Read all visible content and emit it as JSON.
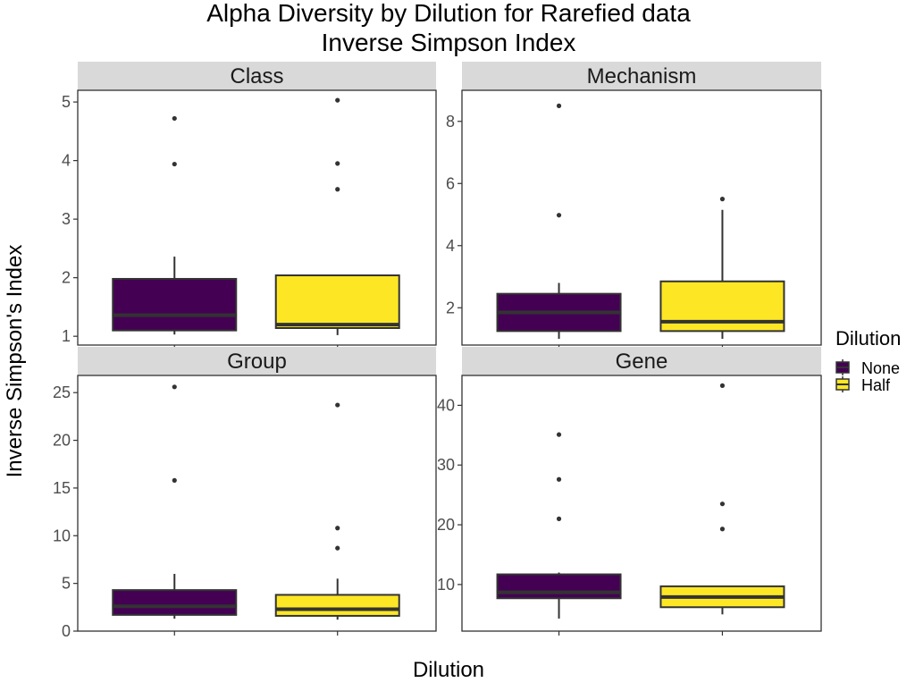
{
  "chart_data": {
    "type": "boxplot",
    "title": "Alpha Diversity by Dilution for Rarefied data",
    "subtitle": "Inverse Simpson Index",
    "xlabel": "Dilution",
    "ylabel": "Inverse Simpson's Index",
    "legend": {
      "title": "Dilution",
      "placement": "right",
      "entries": [
        {
          "label": "None",
          "color": "#440154"
        },
        {
          "label": "Half",
          "color": "#FDE725"
        }
      ]
    },
    "categories": [
      "None",
      "Half"
    ],
    "colors": {
      "None": "#440154",
      "Half": "#FDE725",
      "strip": "#D9D9D9",
      "outline": "#333333"
    },
    "facets": [
      {
        "name": "Class",
        "ylim": [
          0.85,
          5.2
        ],
        "yticks": [
          1,
          2,
          3,
          4,
          5
        ],
        "boxes": [
          {
            "group": "None",
            "min": 1.03,
            "q1": 1.1,
            "median": 1.36,
            "q3": 1.98,
            "max": 2.36,
            "outliers": [
              3.94,
              4.72
            ]
          },
          {
            "group": "Half",
            "min": 1.02,
            "q1": 1.14,
            "median": 1.2,
            "q3": 2.04,
            "max": 2.04,
            "outliers": [
              3.51,
              3.95,
              5.03
            ]
          }
        ]
      },
      {
        "name": "Mechanism",
        "ylim": [
          0.8,
          9.0
        ],
        "yticks": [
          2,
          4,
          6,
          8
        ],
        "boxes": [
          {
            "group": "None",
            "min": 1.0,
            "q1": 1.25,
            "median": 1.85,
            "q3": 2.45,
            "max": 2.8,
            "outliers": [
              4.98,
              8.5
            ]
          },
          {
            "group": "Half",
            "min": 1.0,
            "q1": 1.25,
            "median": 1.55,
            "q3": 2.85,
            "max": 5.15,
            "outliers": [
              5.5
            ]
          }
        ]
      },
      {
        "name": "Group",
        "ylim": [
          0,
          26.8
        ],
        "yticks": [
          0,
          5,
          10,
          15,
          20,
          25
        ],
        "boxes": [
          {
            "group": "None",
            "min": 1.3,
            "q1": 1.7,
            "median": 2.6,
            "q3": 4.3,
            "max": 6.0,
            "outliers": [
              15.8,
              25.6
            ]
          },
          {
            "group": "Half",
            "min": 1.2,
            "q1": 1.6,
            "median": 2.3,
            "q3": 3.8,
            "max": 5.5,
            "outliers": [
              8.7,
              10.8,
              23.7
            ]
          }
        ]
      },
      {
        "name": "Gene",
        "ylim": [
          2.2,
          45.0
        ],
        "yticks": [
          10,
          20,
          30,
          40
        ],
        "boxes": [
          {
            "group": "None",
            "min": 4.3,
            "q1": 7.7,
            "median": 8.7,
            "q3": 11.7,
            "max": 12.0,
            "outliers": [
              21.0,
              27.6,
              35.1
            ]
          },
          {
            "group": "Half",
            "min": 5.0,
            "q1": 6.2,
            "median": 7.9,
            "q3": 9.7,
            "max": 9.7,
            "outliers": [
              19.3,
              23.5,
              43.3
            ]
          }
        ]
      }
    ]
  }
}
